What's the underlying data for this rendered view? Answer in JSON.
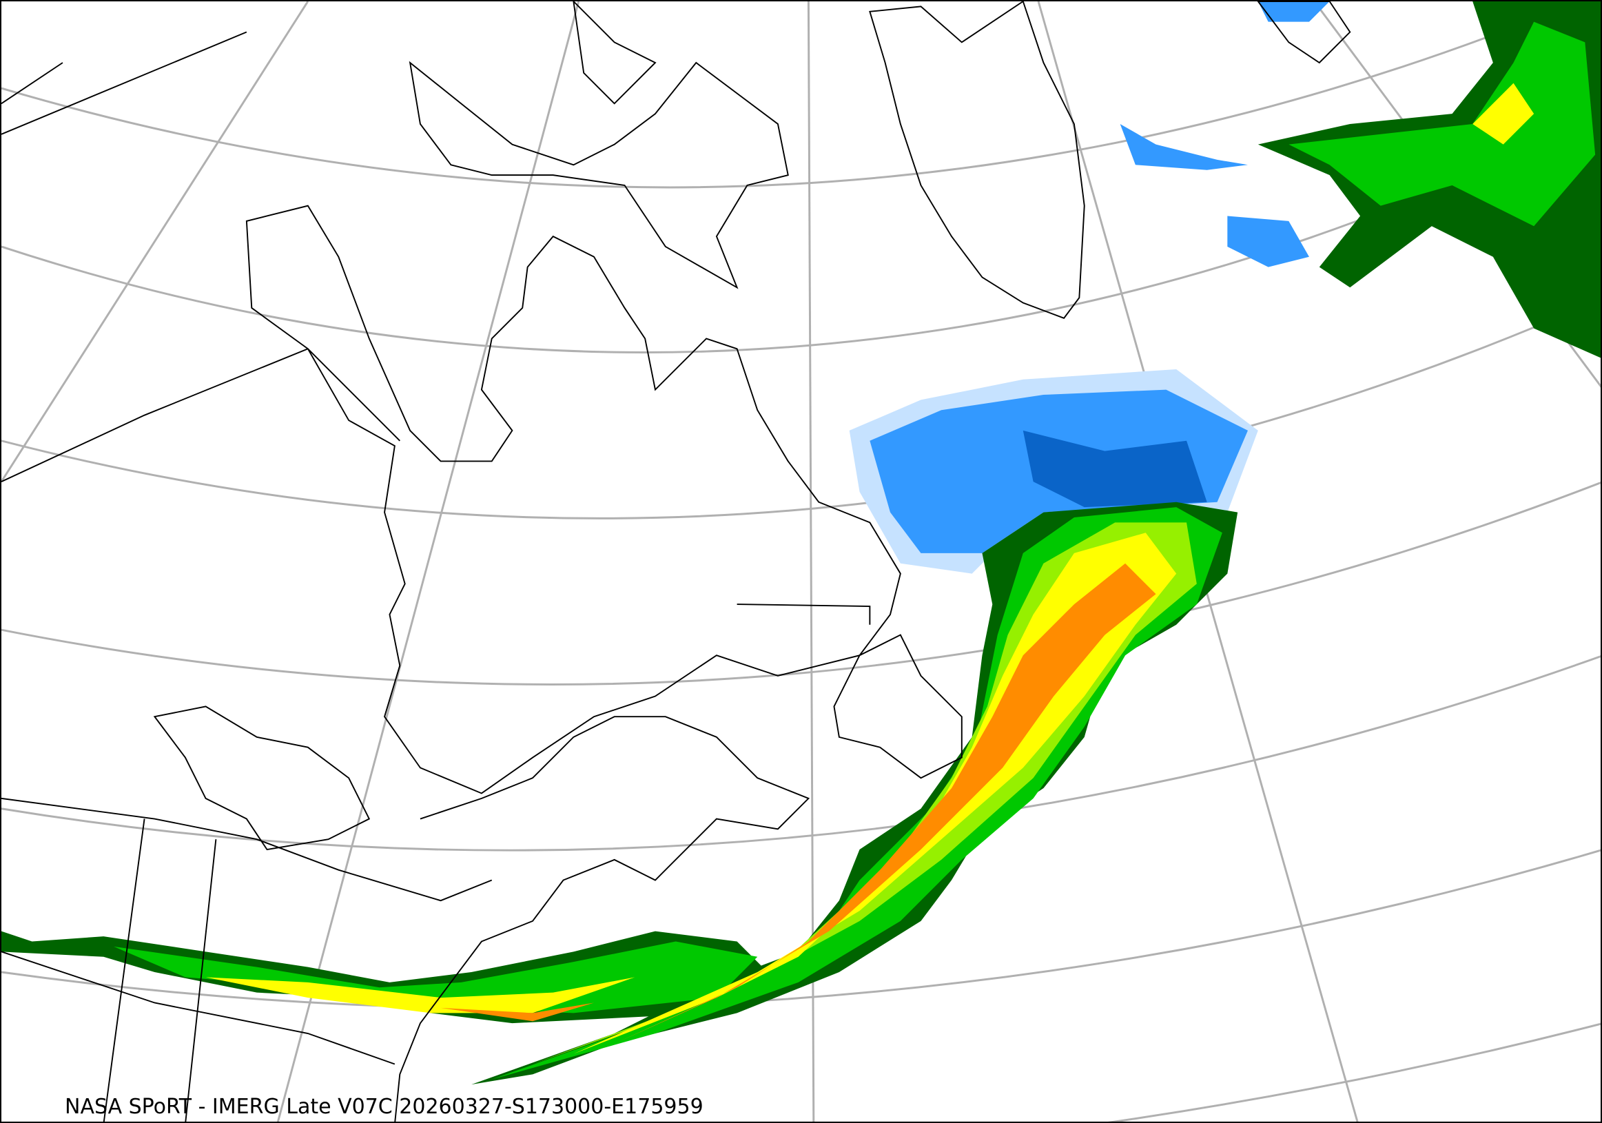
{
  "caption": "NASA SPoRT - IMERG Late V07C 20260327-S173000-E175959",
  "colors": {
    "graticule": "#b0b0b0",
    "coastline": "#000000",
    "rain_dark_green": "#006400",
    "rain_green": "#00c800",
    "rain_light_green": "#96f000",
    "rain_yellow": "#ffff00",
    "rain_orange": "#ff8c00",
    "snow_light_blue": "#c6e2ff",
    "snow_blue": "#3399ff",
    "snow_dark_blue": "#0a64c8"
  }
}
